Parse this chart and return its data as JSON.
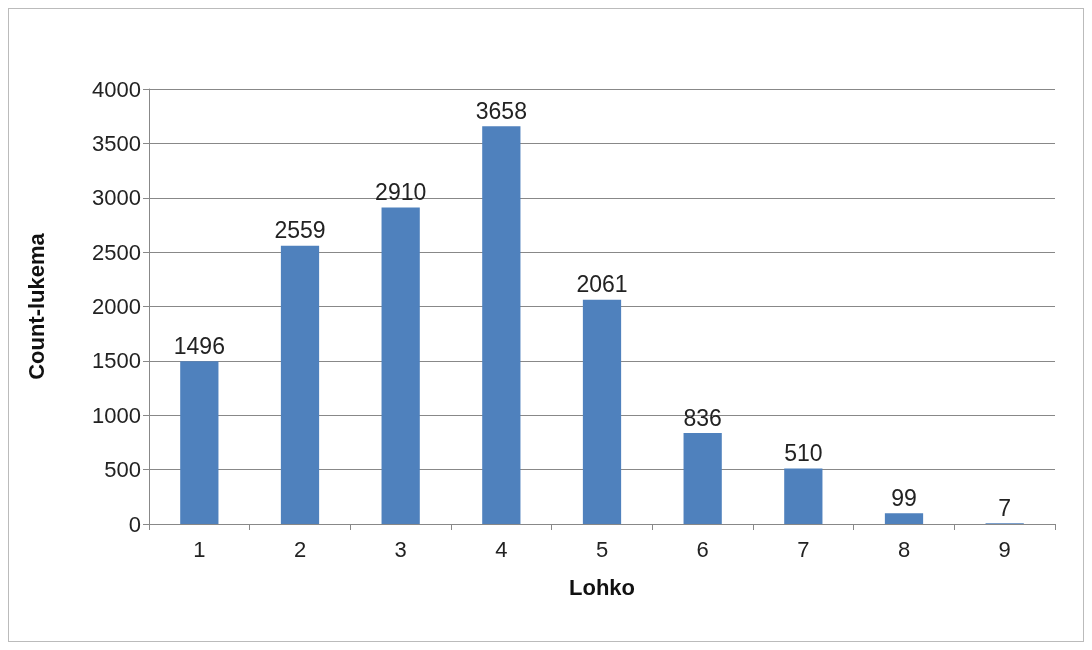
{
  "chart_data": {
    "type": "bar",
    "xlabel": "Lohko",
    "ylabel": "Count-lukema",
    "categories": [
      "1",
      "2",
      "3",
      "4",
      "5",
      "6",
      "7",
      "8",
      "9"
    ],
    "values": [
      1496,
      2559,
      2910,
      3658,
      2061,
      836,
      510,
      99,
      7
    ],
    "color": "#4f81bd",
    "ylim": [
      0,
      4000
    ],
    "yticks": [
      0,
      500,
      1000,
      1500,
      2000,
      2500,
      3000,
      3500,
      4000
    ],
    "grid": "y",
    "data_labels": true
  }
}
